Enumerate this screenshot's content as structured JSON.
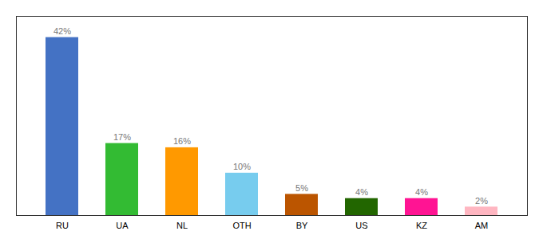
{
  "chart_data": {
    "type": "bar",
    "categories": [
      "RU",
      "UA",
      "NL",
      "OTH",
      "BY",
      "US",
      "KZ",
      "AM"
    ],
    "values": [
      42,
      17,
      16,
      10,
      5,
      4,
      4,
      2
    ],
    "value_labels": [
      "42%",
      "17%",
      "16%",
      "10%",
      "5%",
      "4%",
      "4%",
      "2%"
    ],
    "colors": [
      "#4472C4",
      "#33BB33",
      "#FF9900",
      "#77CCEE",
      "#BB5500",
      "#226600",
      "#FF1493",
      "#FFB6C1"
    ],
    "ylim": [
      0,
      47
    ],
    "yticks": [],
    "grid": false,
    "data_labels": true,
    "tick_labels": "x"
  }
}
